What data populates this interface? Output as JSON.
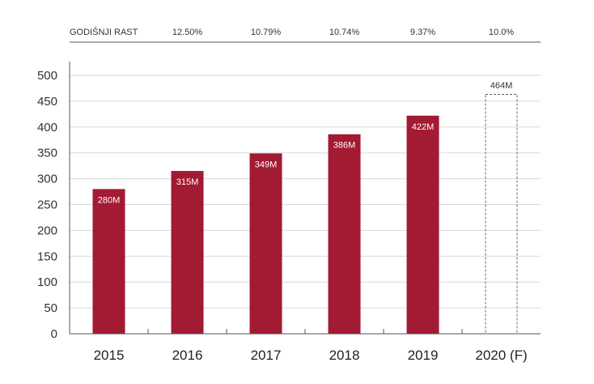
{
  "growth_row": {
    "label": "GODIŠNJI RAST",
    "values": [
      "12.50%",
      "10.79%",
      "10.74%",
      "9.37%",
      "10.0%"
    ]
  },
  "chart_data": {
    "type": "bar",
    "categories": [
      "2015",
      "2016",
      "2017",
      "2018",
      "2019",
      "2020 (F)"
    ],
    "values": [
      280,
      315,
      349,
      386,
      422,
      464
    ],
    "data_labels": [
      "280M",
      "315M",
      "349M",
      "386M",
      "422M",
      "464M"
    ],
    "forecast": [
      false,
      false,
      false,
      false,
      false,
      true
    ],
    "ylim": [
      0,
      500
    ],
    "yticks": [
      0,
      50,
      100,
      150,
      200,
      250,
      300,
      350,
      400,
      450,
      500
    ],
    "grid": true,
    "colors": {
      "bar": "#a31a33",
      "forecast_outline": "#666666",
      "grid": "#d9d9d9",
      "axis": "#555555"
    }
  }
}
